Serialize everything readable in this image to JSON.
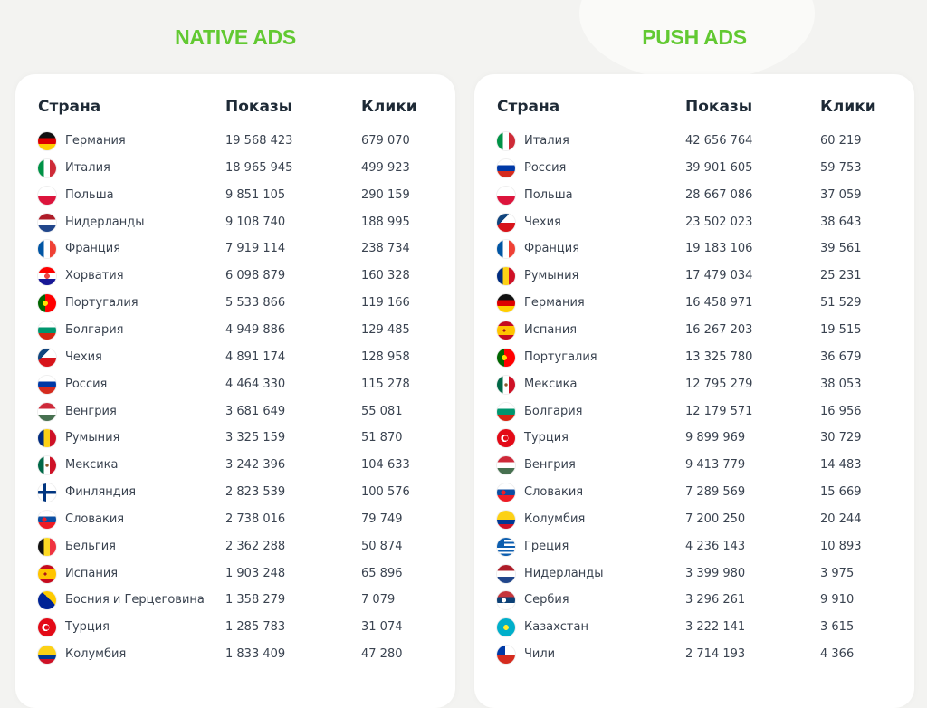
{
  "native": {
    "title": "NATIVE ADS",
    "headers": {
      "country": "Страна",
      "impressions": "Показы",
      "clicks": "Клики"
    },
    "rows": [
      {
        "flag": "de",
        "country": "Германия",
        "impressions": "19 568 423",
        "clicks": "679 070"
      },
      {
        "flag": "it",
        "country": "Италия",
        "impressions": "18 965 945",
        "clicks": "499 923"
      },
      {
        "flag": "pl",
        "country": "Польша",
        "impressions": "9 851 105",
        "clicks": "290 159"
      },
      {
        "flag": "nl",
        "country": "Нидерланды",
        "impressions": "9 108 740",
        "clicks": "188 995"
      },
      {
        "flag": "fr",
        "country": "Франция",
        "impressions": "7 919 114",
        "clicks": "238 734"
      },
      {
        "flag": "hr",
        "country": "Хорватия",
        "impressions": "6 098 879",
        "clicks": "160 328"
      },
      {
        "flag": "pt",
        "country": "Португалия",
        "impressions": "5 533 866",
        "clicks": "119 166"
      },
      {
        "flag": "bg",
        "country": "Болгария",
        "impressions": "4 949 886",
        "clicks": "129 485"
      },
      {
        "flag": "cz",
        "country": "Чехия",
        "impressions": "4 891 174",
        "clicks": "128 958"
      },
      {
        "flag": "ru",
        "country": "Россия",
        "impressions": "4 464 330",
        "clicks": "115 278"
      },
      {
        "flag": "hu",
        "country": "Венгрия",
        "impressions": "3 681 649",
        "clicks": "55 081"
      },
      {
        "flag": "ro",
        "country": "Румыния",
        "impressions": "3 325 159",
        "clicks": "51 870"
      },
      {
        "flag": "mx",
        "country": "Мексика",
        "impressions": "3 242 396",
        "clicks": "104 633"
      },
      {
        "flag": "fi",
        "country": "Финляндия",
        "impressions": "2 823 539",
        "clicks": "100 576"
      },
      {
        "flag": "sk",
        "country": "Словакия",
        "impressions": "2 738 016",
        "clicks": "79 749"
      },
      {
        "flag": "be",
        "country": "Бельгия",
        "impressions": "2 362 288",
        "clicks": "50 874"
      },
      {
        "flag": "es",
        "country": "Испания",
        "impressions": "1 903 248",
        "clicks": "65 896"
      },
      {
        "flag": "ba",
        "country": "Босния и Герцеговина",
        "impressions": "1 358 279",
        "clicks": "7 079"
      },
      {
        "flag": "tr",
        "country": "Турция",
        "impressions": "1 285 783",
        "clicks": "31 074"
      },
      {
        "flag": "co",
        "country": "Колумбия",
        "impressions": "1 833 409",
        "clicks": "47 280"
      }
    ]
  },
  "push": {
    "title": "PUSH ADS",
    "headers": {
      "country": "Страна",
      "impressions": "Показы",
      "clicks": "Клики"
    },
    "rows": [
      {
        "flag": "it",
        "country": "Италия",
        "impressions": "42 656 764",
        "clicks": "60 219"
      },
      {
        "flag": "ru",
        "country": "Россия",
        "impressions": "39 901 605",
        "clicks": "59 753"
      },
      {
        "flag": "pl",
        "country": "Польша",
        "impressions": "28 667 086",
        "clicks": "37 059"
      },
      {
        "flag": "cz",
        "country": "Чехия",
        "impressions": "23 502 023",
        "clicks": "38 643"
      },
      {
        "flag": "fr",
        "country": "Франция",
        "impressions": "19 183 106",
        "clicks": "39 561"
      },
      {
        "flag": "ro",
        "country": "Румыния",
        "impressions": "17 479 034",
        "clicks": "25 231"
      },
      {
        "flag": "de",
        "country": "Германия",
        "impressions": "16 458 971",
        "clicks": "51 529"
      },
      {
        "flag": "es",
        "country": "Испания",
        "impressions": "16 267 203",
        "clicks": "19 515"
      },
      {
        "flag": "pt",
        "country": "Португалия",
        "impressions": "13 325 780",
        "clicks": "36 679"
      },
      {
        "flag": "mx",
        "country": "Мексика",
        "impressions": "12 795 279",
        "clicks": "38 053"
      },
      {
        "flag": "bg",
        "country": "Болгария",
        "impressions": "12 179 571",
        "clicks": "16 956"
      },
      {
        "flag": "tr",
        "country": "Турция",
        "impressions": "9 899 969",
        "clicks": "30 729"
      },
      {
        "flag": "hu",
        "country": "Венгрия",
        "impressions": "9 413 779",
        "clicks": "14 483"
      },
      {
        "flag": "sk",
        "country": "Словакия",
        "impressions": "7 289 569",
        "clicks": "15 669"
      },
      {
        "flag": "co",
        "country": "Колумбия",
        "impressions": "7 200 250",
        "clicks": "20 244"
      },
      {
        "flag": "gr",
        "country": "Греция",
        "impressions": "4 236 143",
        "clicks": "10 893"
      },
      {
        "flag": "nl",
        "country": "Нидерланды",
        "impressions": "3 399 980",
        "clicks": "3 975"
      },
      {
        "flag": "rs",
        "country": "Сербия",
        "impressions": "3 296 261",
        "clicks": "9 910"
      },
      {
        "flag": "kz",
        "country": "Казахстан",
        "impressions": "3 222 141",
        "clicks": "3 615"
      },
      {
        "flag": "cl",
        "country": "Чили",
        "impressions": "2 714 193",
        "clicks": "4 366"
      }
    ]
  },
  "colors": {
    "accent": "#62c932",
    "text": "#3a4350",
    "heading": "#1e2a36"
  }
}
